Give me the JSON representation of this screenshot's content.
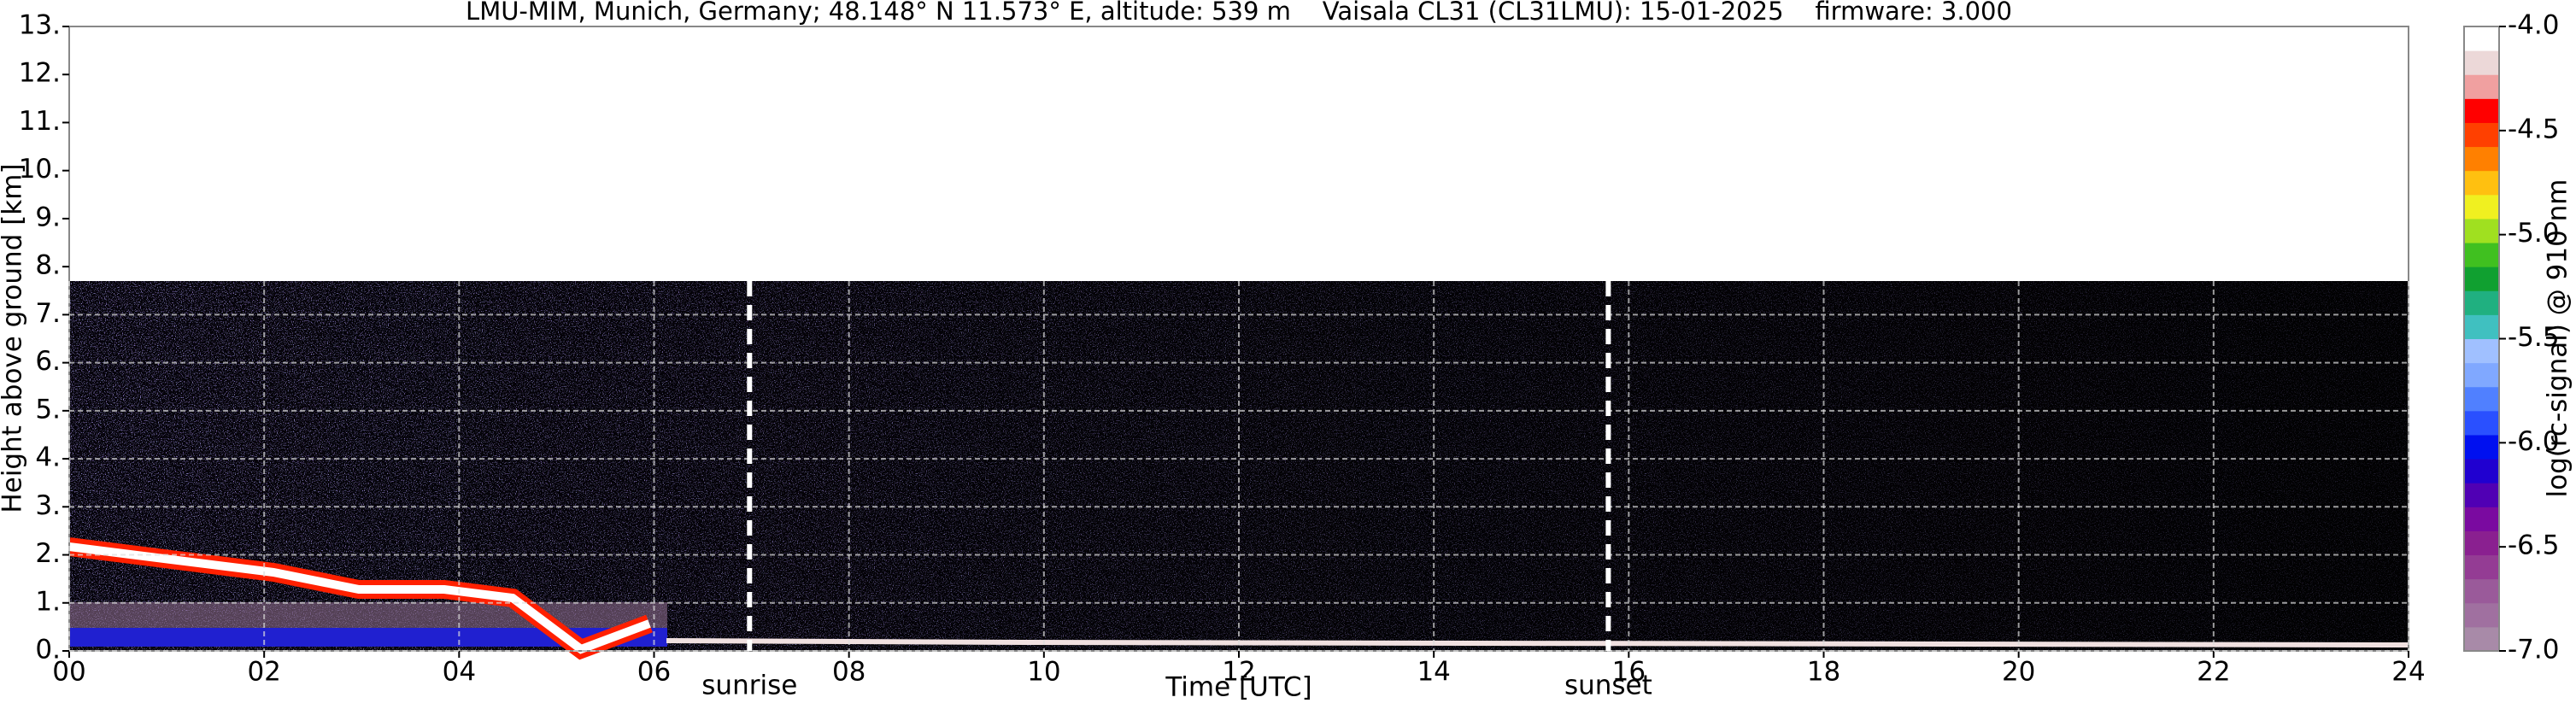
{
  "chart_data": {
    "type": "heatmap",
    "title": "LMU-MIM, Munich, Germany; 48.148° N 11.573° E, altitude: 539 m    Vaisala CL31 (CL31LMU): 15-01-2025    firmware: 3.000",
    "xlabel": "Time [UTC]",
    "ylabel": "Height above ground [km]",
    "xlim": [
      0,
      24
    ],
    "ylim": [
      0,
      13
    ],
    "xticks": [
      {
        "value": 0,
        "label": "00"
      },
      {
        "value": 2,
        "label": "02"
      },
      {
        "value": 4,
        "label": "04"
      },
      {
        "value": 6,
        "label": "06"
      },
      {
        "value": 8,
        "label": "08"
      },
      {
        "value": 10,
        "label": "10"
      },
      {
        "value": 12,
        "label": "12"
      },
      {
        "value": 14,
        "label": "14"
      },
      {
        "value": 16,
        "label": "16"
      },
      {
        "value": 18,
        "label": "18"
      },
      {
        "value": 20,
        "label": "20"
      },
      {
        "value": 22,
        "label": "22"
      },
      {
        "value": 24,
        "label": "24"
      }
    ],
    "yticks": [
      {
        "value": 0,
        "label": "0."
      },
      {
        "value": 1,
        "label": "1."
      },
      {
        "value": 2,
        "label": "2."
      },
      {
        "value": 3,
        "label": "3."
      },
      {
        "value": 4,
        "label": "4."
      },
      {
        "value": 5,
        "label": "5."
      },
      {
        "value": 6,
        "label": "6."
      },
      {
        "value": 7,
        "label": "7."
      },
      {
        "value": 8,
        "label": "8."
      },
      {
        "value": 9,
        "label": "9."
      },
      {
        "value": 10,
        "label": "10."
      },
      {
        "value": 11,
        "label": "11."
      },
      {
        "value": 12,
        "label": "12."
      },
      {
        "value": 13,
        "label": "13."
      }
    ],
    "grid": true,
    "annotations": [
      {
        "text": "sunrise",
        "x": 6.98
      },
      {
        "text": "sunset",
        "x": 15.79
      }
    ],
    "colorbar": {
      "label": "log(rc-signal) @ 910 nm",
      "lim": [
        -7,
        -4
      ],
      "ticks": [
        {
          "value": -7,
          "label": "-7.0"
        },
        {
          "value": -6.5,
          "label": "-6.5"
        },
        {
          "value": -6,
          "label": "-6.0"
        },
        {
          "value": -5.5,
          "label": "-5.5"
        },
        {
          "value": -5,
          "label": "-5.0"
        },
        {
          "value": -4.5,
          "label": "-4.5"
        },
        {
          "value": -4,
          "label": "-4.0"
        }
      ],
      "colors": [
        "#a88aa8",
        "#a070a0",
        "#9a5a9a",
        "#943c94",
        "#8a2090",
        "#7a0aa0",
        "#5000b4",
        "#2000d0",
        "#0010f0",
        "#2a50ff",
        "#5080ff",
        "#80a8ff",
        "#a0c0ff",
        "#40c0c0",
        "#20b080",
        "#10a030",
        "#40c020",
        "#a0e020",
        "#f0f020",
        "#ffc010",
        "#ff8000",
        "#ff4000",
        "#ff0000",
        "#f0a0a0",
        "#ecd8d8",
        "#ffffff"
      ]
    }
  }
}
